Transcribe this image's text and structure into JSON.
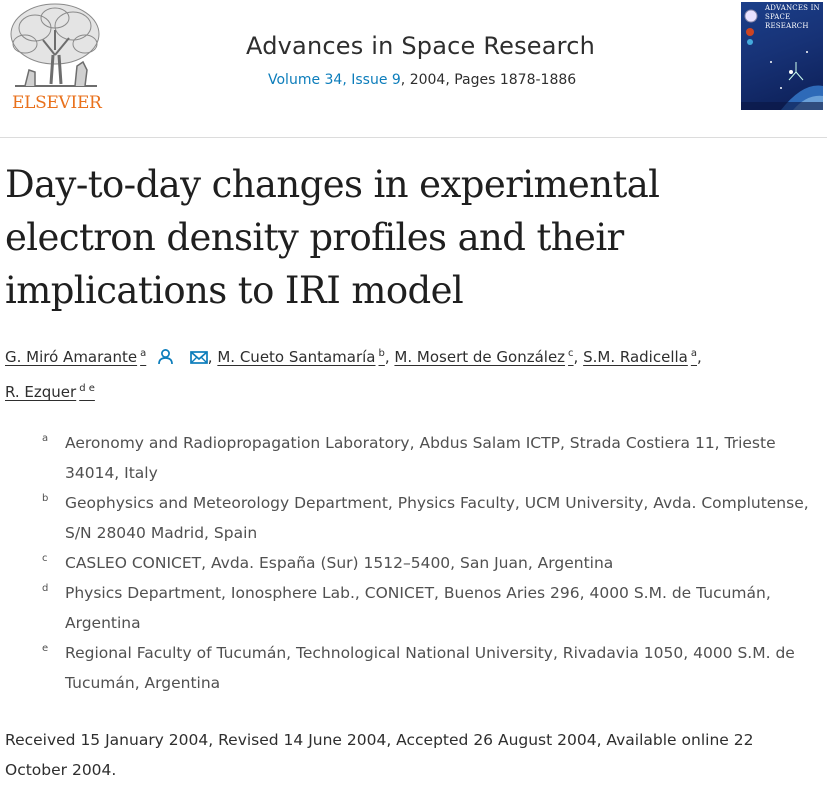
{
  "publisher": {
    "name": "ELSEVIER"
  },
  "journal": {
    "title": "Advances in Space Research",
    "volume_issue": "Volume 34, Issue 9",
    "year_pages": ", 2004, Pages 1878-1886",
    "cover_lines": [
      "ADVANCES IN",
      "SPACE",
      "RESEARCH"
    ]
  },
  "article": {
    "title": "Day-to-day changes in experimental electron density profiles and their implications to IRI model"
  },
  "authors": [
    {
      "name": "G. Miró Amarante",
      "sup": "a",
      "sep": ""
    },
    {
      "name": "M. Cueto Santamaría",
      "sup": "b",
      "sep": ","
    },
    {
      "name": "M. Mosert de González",
      "sup": "c",
      "sep": ","
    },
    {
      "name": "S.M. Radicella",
      "sup": "a",
      "sep": ","
    },
    {
      "name": "R. Ezquer",
      "sup": "d e",
      "sep": ""
    }
  ],
  "affiliations": [
    {
      "mark": "a",
      "text": "Aeronomy and Radiopropagation Laboratory, Abdus Salam ICTP, Strada Costiera 11, Trieste 34014, Italy"
    },
    {
      "mark": "b",
      "text": "Geophysics and Meteorology Department, Physics Faculty, UCM University, Avda. Complutense, S/N 28040 Madrid, Spain"
    },
    {
      "mark": "c",
      "text": "CASLEO CONICET, Avda. España (Sur) 1512–5400, San Juan, Argentina"
    },
    {
      "mark": "d",
      "text": "Physics Department, Ionosphere Lab., CONICET, Buenos Aries 296, 4000 S.M. de Tucumán, Argentina"
    },
    {
      "mark": "e",
      "text": "Regional Faculty of Tucumán, Technological National University, Rivadavia 1050, 4000 S.M. de Tucumán, Argentina"
    }
  ],
  "history": "Received 15 January 2004, Revised 14 June 2004, Accepted 26 August 2004, Available online 22 October 2004.",
  "icons": {
    "person": "person-icon",
    "mail": "envelope-icon"
  },
  "colors": {
    "link": "#0c7dbb",
    "publisher": "#e9711c",
    "text": "#2e2e2e"
  }
}
